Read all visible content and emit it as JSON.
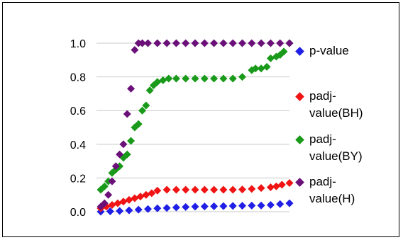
{
  "chart_data": {
    "type": "scatter",
    "title": "",
    "xlabel": "",
    "ylabel": "",
    "ylim": [
      0,
      1.0
    ],
    "xlim": [
      0,
      100
    ],
    "yticks": [
      "0.0",
      "0.2",
      "0.4",
      "0.6",
      "0.8",
      "1.0"
    ],
    "grid": "horizontal",
    "legend_position": "right",
    "series": [
      {
        "name": "p-value",
        "color": "#1f1fe6",
        "x": [
          0,
          5,
          10,
          15,
          20,
          25,
          30,
          35,
          40,
          45,
          50,
          55,
          60,
          65,
          70,
          75,
          80,
          85,
          90,
          95,
          100
        ],
        "y": [
          0.0,
          0.002,
          0.004,
          0.008,
          0.012,
          0.016,
          0.02,
          0.022,
          0.025,
          0.028,
          0.03,
          0.031,
          0.032,
          0.033,
          0.034,
          0.035,
          0.036,
          0.037,
          0.04,
          0.045,
          0.05
        ]
      },
      {
        "name": "padj-value(BH)",
        "color": "#f01414",
        "x": [
          0,
          3,
          6,
          9,
          12,
          15,
          18,
          21,
          24,
          27,
          30,
          35,
          40,
          45,
          50,
          55,
          60,
          65,
          70,
          75,
          80,
          85,
          90,
          93,
          96,
          100
        ],
        "y": [
          0.02,
          0.03,
          0.04,
          0.05,
          0.06,
          0.07,
          0.08,
          0.09,
          0.1,
          0.11,
          0.125,
          0.13,
          0.13,
          0.13,
          0.13,
          0.13,
          0.13,
          0.13,
          0.13,
          0.132,
          0.135,
          0.14,
          0.145,
          0.15,
          0.16,
          0.17
        ]
      },
      {
        "name": "padj-value(BY)",
        "color": "#1a9a1a",
        "x": [
          0,
          2,
          4,
          6,
          8,
          10,
          12,
          14,
          16,
          18,
          20,
          22,
          24,
          26,
          28,
          30,
          33,
          36,
          40,
          45,
          50,
          55,
          60,
          65,
          70,
          75,
          80,
          82,
          85,
          88,
          90,
          93,
          95,
          97,
          100
        ],
        "y": [
          0.13,
          0.15,
          0.18,
          0.23,
          0.25,
          0.27,
          0.32,
          0.34,
          0.42,
          0.5,
          0.52,
          0.6,
          0.63,
          0.72,
          0.75,
          0.77,
          0.78,
          0.79,
          0.79,
          0.79,
          0.79,
          0.79,
          0.79,
          0.79,
          0.79,
          0.8,
          0.84,
          0.85,
          0.85,
          0.86,
          0.91,
          0.92,
          0.93,
          0.95,
          1.0
        ]
      },
      {
        "name": "padj-value(H)",
        "color": "#6a1078",
        "x": [
          0,
          2,
          4,
          6,
          8,
          10,
          12,
          14,
          16,
          18,
          20,
          22,
          25,
          30,
          35,
          40,
          45,
          50,
          55,
          60,
          65,
          70,
          75,
          80,
          85,
          90,
          95,
          100
        ],
        "y": [
          0.03,
          0.05,
          0.1,
          0.18,
          0.27,
          0.34,
          0.4,
          0.58,
          0.73,
          0.96,
          1.0,
          1.0,
          1.0,
          1.0,
          1.0,
          1.0,
          1.0,
          1.0,
          1.0,
          1.0,
          1.0,
          1.0,
          1.0,
          1.0,
          1.0,
          1.0,
          1.0,
          1.0
        ]
      }
    ]
  },
  "legend": {
    "items": [
      {
        "label": "p-value",
        "color": "#1f1fe6"
      },
      {
        "label": "padj-\nvalue(BH)",
        "color": "#f01414"
      },
      {
        "label": "padj-\nvalue(BY)",
        "color": "#1a9a1a"
      },
      {
        "label": "padj-\nvalue(H)",
        "color": "#6a1078"
      }
    ]
  }
}
